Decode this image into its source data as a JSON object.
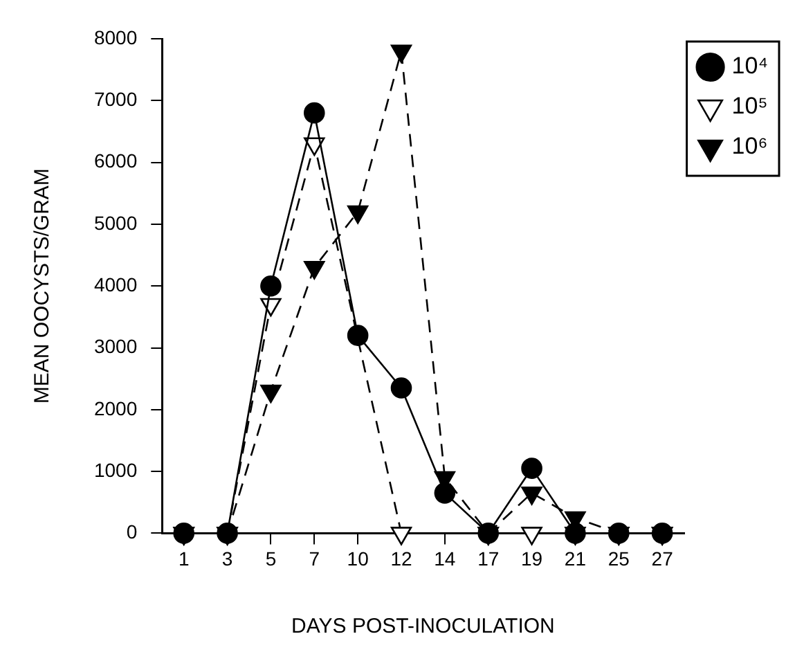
{
  "chart_data": {
    "type": "line",
    "xlabel": "DAYS POST-INOCULATION",
    "ylabel": "MEAN OOCYSTS/GRAM",
    "categories": [
      "1",
      "3",
      "5",
      "7",
      "10",
      "12",
      "14",
      "17",
      "19",
      "21",
      "25",
      "27"
    ],
    "ylim": [
      0,
      8000
    ],
    "yticks": [
      0,
      1000,
      2000,
      3000,
      4000,
      5000,
      6000,
      7000,
      8000
    ],
    "grid": false,
    "legend": "top right",
    "series": [
      {
        "name": "10⁴",
        "color": "#000000",
        "marker": "circle",
        "line_style": "solid",
        "values": [
          0,
          0,
          4000,
          6800,
          3200,
          2350,
          650,
          0,
          1050,
          0,
          0,
          0
        ]
      },
      {
        "name": "10⁵",
        "color": "#000000",
        "colors": [
          "#ffffff",
          "#ffffff",
          "#ffffff",
          "#ffffff",
          "#ffffff",
          "#ffffff",
          "#ffffff",
          "#ffffff",
          "#ffffff",
          "#ffffff",
          "#ffffff",
          "#ffffff"
        ],
        "marker": "triangle",
        "line_style": "dashed",
        "values": [
          0,
          0,
          3700,
          6300,
          null,
          0,
          null,
          0,
          0,
          0,
          0,
          0
        ]
      },
      {
        "name": "10⁶",
        "color": "#000000",
        "marker": "triangle",
        "line_style": "dashed",
        "values": [
          0,
          0,
          2300,
          4300,
          5200,
          7800,
          900,
          0,
          650,
          250,
          0,
          0
        ]
      }
    ]
  }
}
